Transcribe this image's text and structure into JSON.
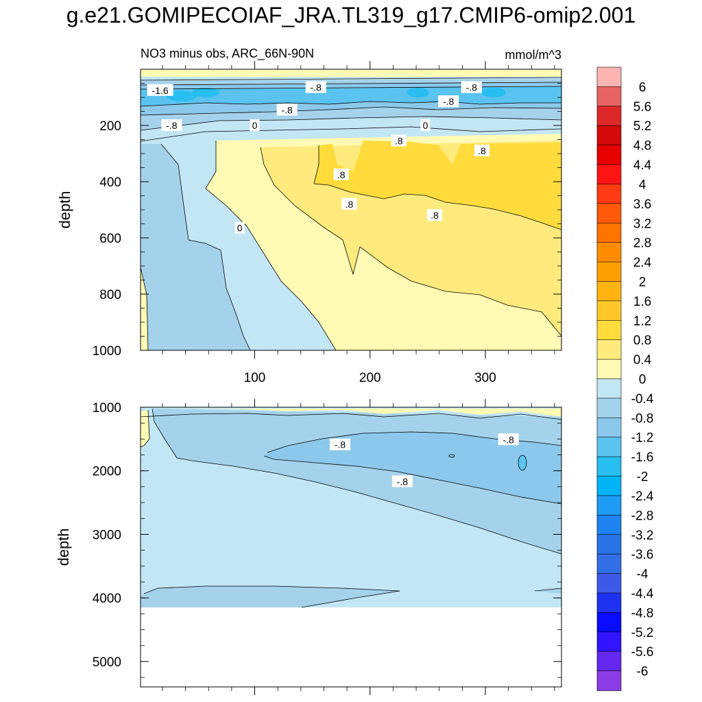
{
  "title": "g.e21.GOMIPECOIAF_JRA.TL319_g17.CMIP6-omip2.001",
  "chart_data": [
    {
      "type": "heatmap",
      "panel": "top",
      "subtitle_left": "NO3 minus obs, ARC_66N-90N",
      "subtitle_right": "mmol/m^3",
      "ylabel": "depth",
      "xlabel": "",
      "xlim": [
        1,
        366
      ],
      "ylim": [
        0,
        1000
      ],
      "y_inverted": true,
      "x_ticks": [
        100,
        200,
        300
      ],
      "y_ticks": [
        200,
        400,
        600,
        800,
        1000
      ],
      "contour_labels": [
        {
          "text": "-1.6",
          "x": 18,
          "y": 75
        },
        {
          "text": "-.8",
          "x": 153,
          "y": 65
        },
        {
          "text": "-.8",
          "x": 288,
          "y": 65
        },
        {
          "text": "-.8",
          "x": 128,
          "y": 145
        },
        {
          "text": "-.8",
          "x": 268,
          "y": 115
        },
        {
          "text": "-.8",
          "x": 28,
          "y": 200
        },
        {
          "text": "0",
          "x": 100,
          "y": 200
        },
        {
          "text": "0",
          "x": 248,
          "y": 200
        },
        {
          "text": ".8",
          "x": 225,
          "y": 255
        },
        {
          "text": ".8",
          "x": 297,
          "y": 290
        },
        {
          "text": ".8",
          "x": 175,
          "y": 375
        },
        {
          "text": ".8",
          "x": 182,
          "y": 480
        },
        {
          "text": ".8",
          "x": 256,
          "y": 520
        },
        {
          "text": "0",
          "x": 87,
          "y": 565
        }
      ]
    },
    {
      "type": "heatmap",
      "panel": "bottom",
      "ylabel": "depth",
      "xlim": [
        1,
        366
      ],
      "ylim": [
        1000,
        5400
      ],
      "y_inverted": true,
      "y_ticks": [
        1000,
        2000,
        3000,
        4000,
        5000
      ],
      "data_bottom_depth": 4120,
      "contour_labels": [
        {
          "text": "-.8",
          "x": 174,
          "y": 1590
        },
        {
          "text": "-.8",
          "x": 320,
          "y": 1510
        },
        {
          "text": "-.8",
          "x": 228,
          "y": 2170
        }
      ]
    }
  ],
  "colorbar": {
    "labels": [
      "6",
      "5.6",
      "5.2",
      "4.8",
      "4.4",
      "4",
      "3.6",
      "3.2",
      "2.8",
      "2.4",
      "2",
      "1.6",
      "1.2",
      "0.8",
      "0.4",
      "0",
      "-0.4",
      "-0.8",
      "-1.2",
      "-1.6",
      "-2",
      "-2.4",
      "-2.8",
      "-3.2",
      "-3.6",
      "-4",
      "-4.4",
      "-4.8",
      "-5.2",
      "-5.6",
      "-6"
    ],
    "colors": [
      "#FFB4B4",
      "#E86464",
      "#DC2828",
      "#D20A0A",
      "#E60000",
      "#FF1414",
      "#FF3C14",
      "#FF5A0A",
      "#FF7300",
      "#FF8C00",
      "#FFA000",
      "#FFB414",
      "#FFC828",
      "#FFDC3C",
      "#FFEB7D",
      "#FFFAB4",
      "#C3E6F5",
      "#A5D2EB",
      "#8CC8EB",
      "#5AC3F0",
      "#28BEF0",
      "#00B4F5",
      "#1E9BF5",
      "#1E82F0",
      "#2873E6",
      "#326EE6",
      "#3C5AE6",
      "#1E32F0",
      "#0A0AFF",
      "#3214FF",
      "#6428F0",
      "#8C3CE6"
    ]
  }
}
